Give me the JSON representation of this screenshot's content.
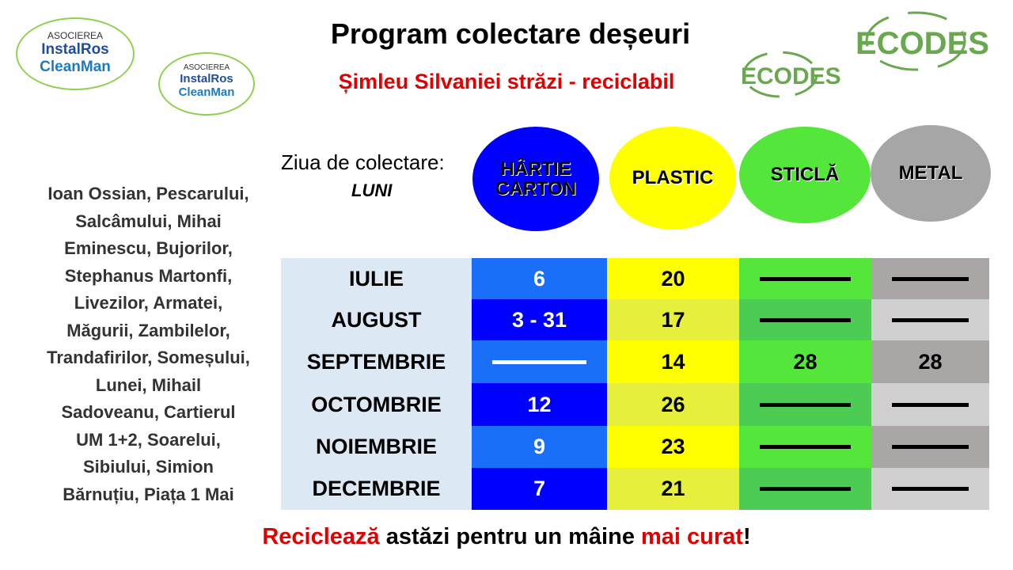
{
  "logos": {
    "instalros": {
      "association": "ASOCIEREA",
      "name1": "InstalRos",
      "name2": "CleanMan"
    },
    "ecodes": "ECODES"
  },
  "header": {
    "title": "Program colectare deșeuri",
    "subtitle": "Șimleu Silvaniei străzi - reciclabil"
  },
  "collection_day": {
    "label": "Ziua de colectare:",
    "day": "LUNI"
  },
  "categories": [
    {
      "line1": "HÂRTIE",
      "line2": "CARTON",
      "color": "#0000ff"
    },
    {
      "line1": "PLASTIC",
      "color": "#ffff00"
    },
    {
      "line1": "STICLĂ",
      "color": "#55e63c"
    },
    {
      "line1": "METAL",
      "color": "#a6a6a6"
    }
  ],
  "streets": [
    "Ioan Ossian, Pescarului,",
    "Salcâmului, Mihai",
    "Eminescu, Bujorilor,",
    "Stephanus Martonfi,",
    "Livezilor, Armatei,",
    "Măgurii, Zambilelor,",
    "Trandafirilor, Someșului,",
    "Lunei, Mihail",
    "Sadoveanu, Cartierul",
    "UM 1+2, Soarelui,",
    "Sibiului, Simion",
    "Bărnuțiu, Piața 1 Mai"
  ],
  "table": {
    "rows": [
      [
        "IULIE",
        "6",
        "20",
        null,
        null
      ],
      [
        "AUGUST",
        "3 - 31",
        "17",
        null,
        null
      ],
      [
        "SEPTEMBRIE",
        null,
        "14",
        "28",
        "28"
      ],
      [
        "OCTOMBRIE",
        "12",
        "26",
        null,
        null
      ],
      [
        "NOIEMBRIE",
        "9",
        "23",
        null,
        null
      ],
      [
        "DECEMBRIE",
        "7",
        "21",
        null,
        null
      ]
    ]
  },
  "footer": [
    "Reciclează",
    " astăzi pentru un mâine ",
    "mai curat",
    "!"
  ]
}
